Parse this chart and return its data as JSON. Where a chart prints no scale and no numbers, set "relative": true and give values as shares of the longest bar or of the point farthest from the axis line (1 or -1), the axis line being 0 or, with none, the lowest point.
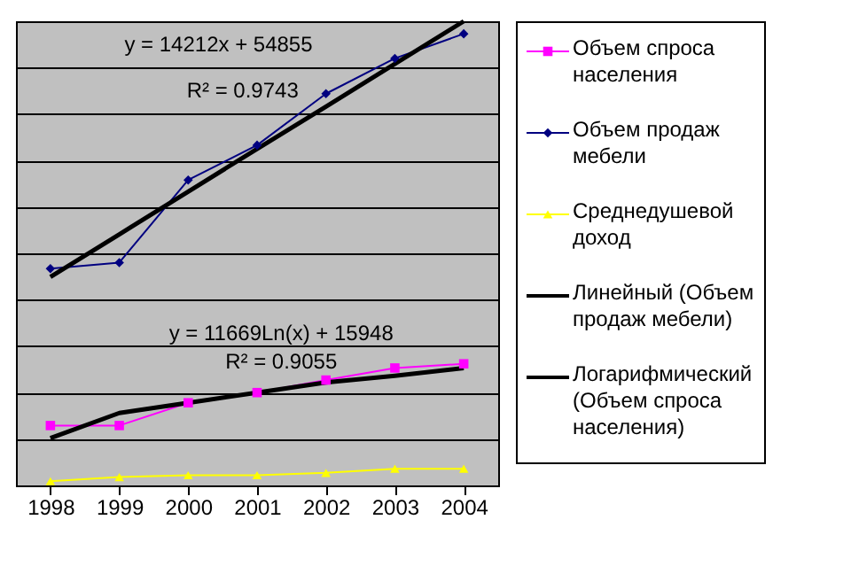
{
  "chart_data": {
    "type": "line",
    "relative": true,
    "categories": [
      "1998",
      "1999",
      "2000",
      "2001",
      "2002",
      "2003",
      "2004"
    ],
    "series": [
      {
        "name": "Объем спроса населения",
        "color": "#ff00ff",
        "marker": "square",
        "values": [
          0.129,
          0.129,
          0.178,
          0.2,
          0.227,
          0.253,
          0.262
        ]
      },
      {
        "name": "Объем продаж мебели",
        "color": "#000080",
        "marker": "diamond",
        "values": [
          0.467,
          0.48,
          0.658,
          0.733,
          0.844,
          0.92,
          0.973
        ]
      },
      {
        "name": "Среднедушевой доход",
        "color": "#ffff00",
        "marker": "triangle",
        "values": [
          0.009,
          0.018,
          0.022,
          0.022,
          0.027,
          0.036,
          0.036
        ]
      },
      {
        "name": "Линейный (Объем продаж мебели)",
        "color": "#000000",
        "marker": "none",
        "values": [
          0.449,
          0.541,
          0.633,
          0.725,
          0.816,
          0.908,
          1.0
        ]
      },
      {
        "name": "Логарифмический (Объем спроса населения)",
        "color": "#000000",
        "marker": "none",
        "values": [
          0.102,
          0.156,
          0.178,
          0.2,
          0.222,
          0.236,
          0.253
        ]
      }
    ],
    "annotations": [
      "y = 14212x + 54855",
      "R² = 0.9743",
      "y = 11669Ln(x) + 15948",
      "R² = 0.9055"
    ],
    "grid": "y",
    "legend": "right"
  }
}
